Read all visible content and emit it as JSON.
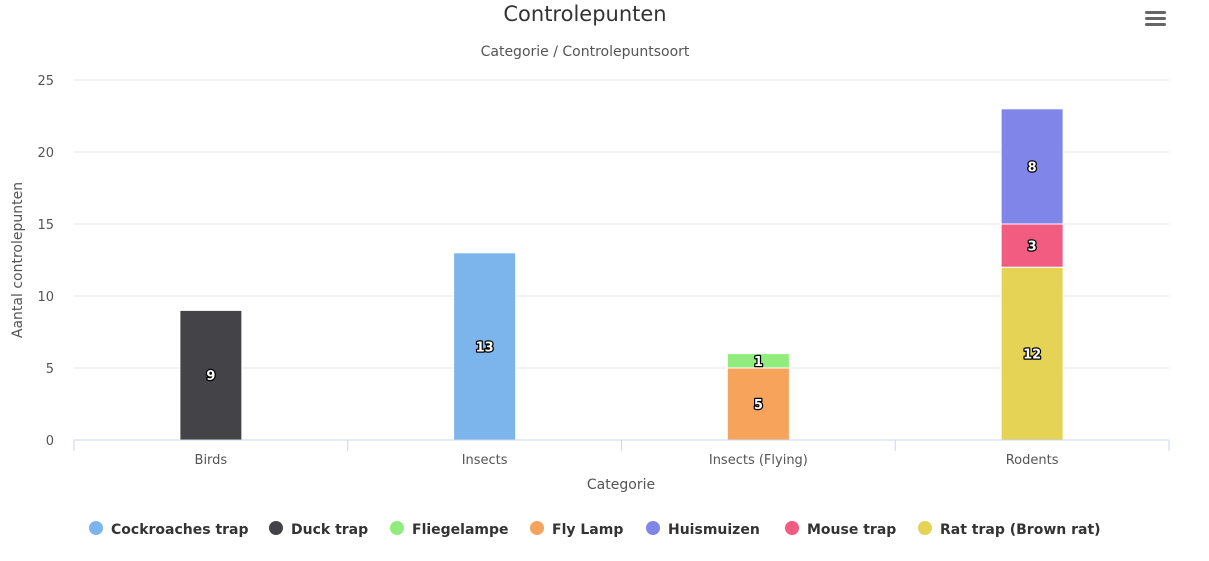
{
  "chart_data": {
    "type": "bar",
    "stacked": true,
    "title": "Controlepunten",
    "subtitle": "Categorie / Controlepuntsoort",
    "xlabel": "Categorie",
    "ylabel": "Aantal controlepunten",
    "ylim": [
      0,
      25
    ],
    "yticks": [
      0,
      5,
      10,
      15,
      20,
      25
    ],
    "grid": true,
    "legend_position": "bottom",
    "categories": [
      "Birds",
      "Insects",
      "Insects (Flying)",
      "Rodents"
    ],
    "series": [
      {
        "name": "Cockroaches trap",
        "color": "#7cb5ec",
        "values": [
          0,
          13,
          0,
          0
        ]
      },
      {
        "name": "Duck trap",
        "color": "#434348",
        "values": [
          9,
          0,
          0,
          0
        ]
      },
      {
        "name": "Fliegelampe",
        "color": "#90ed7d",
        "values": [
          0,
          0,
          1,
          0
        ]
      },
      {
        "name": "Fly Lamp",
        "color": "#f7a35c",
        "values": [
          0,
          0,
          5,
          0
        ]
      },
      {
        "name": "Huismuizen",
        "color": "#8085e9",
        "values": [
          0,
          0,
          0,
          8
        ]
      },
      {
        "name": "Mouse trap",
        "color": "#f15c80",
        "values": [
          0,
          0,
          0,
          3
        ]
      },
      {
        "name": "Rat trap (Brown rat)",
        "color": "#e4d354",
        "values": [
          0,
          0,
          0,
          12
        ]
      }
    ],
    "stack_order_bottom_to_top": [
      "Cockroaches trap",
      "Duck trap",
      "Fly Lamp",
      "Fliegelampe",
      "Rat trap (Brown rat)",
      "Mouse trap",
      "Huismuizen"
    ]
  },
  "menu": {
    "icon": "hamburger-menu-icon"
  }
}
